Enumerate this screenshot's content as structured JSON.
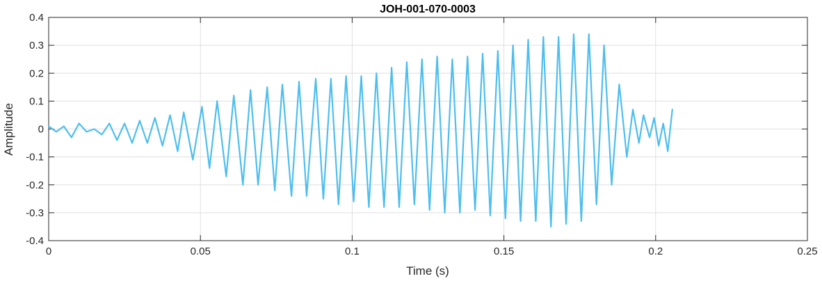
{
  "chart_data": {
    "type": "line",
    "title": "JOH-001-070-0003",
    "xlabel": "Time (s)",
    "ylabel": "Amplitude",
    "xlim": [
      0,
      0.25
    ],
    "ylim": [
      -0.4,
      0.4
    ],
    "xticks": [
      0,
      0.05,
      0.1,
      0.15,
      0.2,
      0.25
    ],
    "xtick_labels": [
      "0",
      "0.05",
      "0.1",
      "0.15",
      "0.2",
      "0.25"
    ],
    "yticks": [
      -0.4,
      -0.3,
      -0.2,
      -0.1,
      0,
      0.1,
      0.2,
      0.3,
      0.4
    ],
    "ytick_labels": [
      "-0.4",
      "-0.3",
      "-0.2",
      "-0.1",
      "0",
      "0.1",
      "0.2",
      "0.3",
      "0.4"
    ],
    "grid": true,
    "color": "#4DBEEE",
    "series": [
      {
        "x": [
          0,
          0.0025,
          0.005,
          0.0075,
          0.01,
          0.0125,
          0.015,
          0.0175,
          0.02,
          0.0225,
          0.025,
          0.0275,
          0.03,
          0.0325,
          0.035,
          0.0375,
          0.04,
          0.0425,
          0.0445,
          0.0475,
          0.0505,
          0.053,
          0.0555,
          0.0585,
          0.061,
          0.064,
          0.0665,
          0.069,
          0.072,
          0.0745,
          0.077,
          0.08,
          0.0825,
          0.085,
          0.088,
          0.0905,
          0.093,
          0.0955,
          0.098,
          0.1005,
          0.103,
          0.1055,
          0.108,
          0.1105,
          0.113,
          0.1155,
          0.118,
          0.1205,
          0.123,
          0.1255,
          0.128,
          0.1305,
          0.133,
          0.1355,
          0.138,
          0.1405,
          0.143,
          0.1455,
          0.148,
          0.1505,
          0.153,
          0.1555,
          0.158,
          0.1605,
          0.163,
          0.1655,
          0.168,
          0.1705,
          0.173,
          0.1755,
          0.178,
          0.1805,
          0.183,
          0.1855,
          0.188,
          0.1905,
          0.1925,
          0.1945,
          0.196,
          0.198,
          0.1995,
          0.201,
          0.2025,
          0.204,
          0.2055
        ],
        "y": [
          0.01,
          -0.01,
          0.01,
          -0.03,
          0.02,
          -0.01,
          0.0,
          -0.02,
          0.02,
          -0.04,
          0.02,
          -0.05,
          0.03,
          -0.05,
          0.04,
          -0.06,
          0.05,
          -0.08,
          0.06,
          -0.11,
          0.08,
          -0.14,
          0.1,
          -0.17,
          0.12,
          -0.2,
          0.14,
          -0.2,
          0.15,
          -0.22,
          0.16,
          -0.24,
          0.17,
          -0.24,
          0.18,
          -0.25,
          0.18,
          -0.27,
          0.19,
          -0.26,
          0.19,
          -0.28,
          0.2,
          -0.28,
          0.22,
          -0.28,
          0.24,
          -0.27,
          0.25,
          -0.29,
          0.26,
          -0.3,
          0.25,
          -0.3,
          0.26,
          -0.29,
          0.27,
          -0.31,
          0.28,
          -0.32,
          0.3,
          -0.33,
          0.32,
          -0.33,
          0.33,
          -0.35,
          0.33,
          -0.34,
          0.34,
          -0.33,
          0.34,
          -0.27,
          0.3,
          -0.2,
          0.16,
          -0.1,
          0.07,
          -0.05,
          0.05,
          -0.03,
          0.04,
          -0.06,
          0.02,
          -0.08,
          0.07
        ]
      }
    ]
  }
}
